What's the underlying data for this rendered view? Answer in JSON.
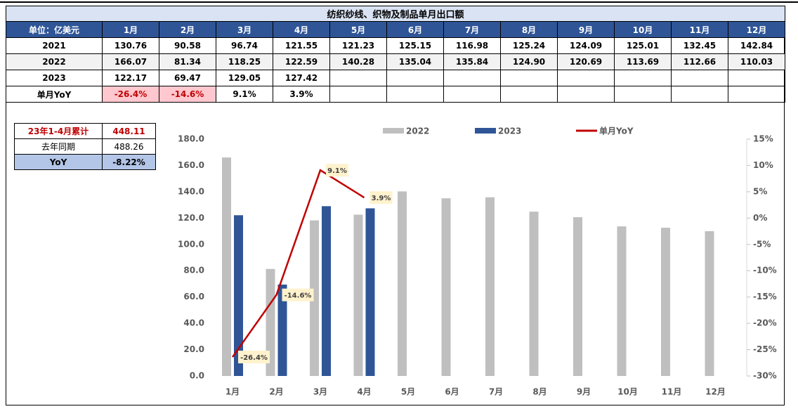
{
  "table": {
    "title": "纺织纱线、织物及制品单月出口额",
    "header": [
      "单位：亿美元",
      "1月",
      "2月",
      "3月",
      "4月",
      "5月",
      "6月",
      "7月",
      "8月",
      "9月",
      "10月",
      "11月",
      "12月"
    ],
    "rows": [
      [
        "2021",
        "130.76",
        "90.58",
        "96.74",
        "121.55",
        "121.23",
        "125.15",
        "116.98",
        "125.24",
        "124.09",
        "125.01",
        "132.45",
        "142.84"
      ],
      [
        "2022",
        "166.07",
        "81.34",
        "118.25",
        "122.59",
        "140.28",
        "135.04",
        "135.84",
        "124.90",
        "120.69",
        "113.69",
        "112.66",
        "110.03"
      ],
      [
        "2023",
        "122.17",
        "69.47",
        "129.05",
        "127.42"
      ],
      [
        "单月YoY",
        "-26.4%",
        "-14.6%",
        "9.1%",
        "3.9%"
      ]
    ]
  },
  "summary": {
    "rows": [
      [
        "23年1-4月累计",
        "448.11"
      ],
      [
        "去年同期",
        "488.26"
      ],
      [
        "YoY",
        "-8.22%"
      ]
    ]
  },
  "chart_data": {
    "type": "bar",
    "categories": [
      "1月",
      "2月",
      "3月",
      "4月",
      "5月",
      "6月",
      "7月",
      "8月",
      "9月",
      "10月",
      "11月",
      "12月"
    ],
    "series": [
      {
        "name": "2022",
        "color": "#bfbfbf",
        "values": [
          166.07,
          81.34,
          118.25,
          122.59,
          140.28,
          135.04,
          135.84,
          124.9,
          120.69,
          113.69,
          112.66,
          110.03
        ]
      },
      {
        "name": "2023",
        "color": "#2f5597",
        "values": [
          122.17,
          69.47,
          129.05,
          127.42,
          null,
          null,
          null,
          null,
          null,
          null,
          null,
          null
        ]
      },
      {
        "name": "单月YoY",
        "color": "#c00000",
        "type": "line",
        "axis": "y2",
        "values": [
          -26.4,
          -14.6,
          9.1,
          3.9,
          null,
          null,
          null,
          null,
          null,
          null,
          null,
          null
        ],
        "value_labels": [
          "-26.4%",
          "-14.6%",
          "9.1%",
          "3.9%",
          null,
          null,
          null,
          null,
          null,
          null,
          null,
          null
        ]
      }
    ],
    "ylim": [
      0,
      180
    ],
    "yticks": [
      {
        "value": 0,
        "label": "0.0"
      },
      {
        "value": 20,
        "label": "20.0"
      },
      {
        "value": 40,
        "label": "40.0"
      },
      {
        "value": 60,
        "label": "60.0"
      },
      {
        "value": 80,
        "label": "80.0"
      },
      {
        "value": 100,
        "label": "100.0"
      },
      {
        "value": 120,
        "label": "120.0"
      },
      {
        "value": 140,
        "label": "140.0"
      },
      {
        "value": 160,
        "label": "160.0"
      },
      {
        "value": 180,
        "label": "180.0"
      }
    ],
    "y2lim": [
      -30,
      15
    ],
    "y2ticks": [
      {
        "value": -30,
        "label": "-30%"
      },
      {
        "value": -25,
        "label": "-25%"
      },
      {
        "value": -20,
        "label": "-20%"
      },
      {
        "value": -15,
        "label": "-15%"
      },
      {
        "value": -10,
        "label": "-10%"
      },
      {
        "value": -5,
        "label": "-5%"
      },
      {
        "value": 0,
        "label": "0%"
      },
      {
        "value": 5,
        "label": "5%"
      },
      {
        "value": 10,
        "label": "10%"
      },
      {
        "value": 15,
        "label": "15%"
      }
    ],
    "legend": "top",
    "grid": false
  }
}
